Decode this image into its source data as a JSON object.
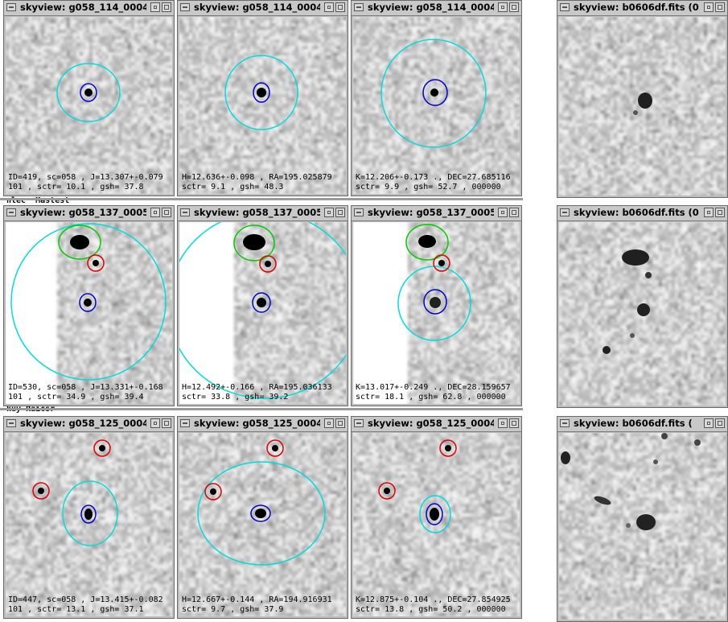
{
  "background_terminal": {
    "line1": "nlec  Mastest",
    "line2": "kuy Raicsr"
  },
  "rows": [
    {
      "panels": [
        {
          "title": "skyview: g058_114_0004",
          "caption_line1": "ID=419, sc=058 , J=13.307+-0.079",
          "caption_line2": "101 , sctr= 10.1 , gsh= 37.8"
        },
        {
          "title": "skyview: g058_114_0004",
          "caption_line1": "H=12.636+-0.098 , RA=195.025879",
          "caption_line2": "sctr= 9.1 , gsh= 48.3"
        },
        {
          "title": "skyview: g058_114_0004",
          "caption_line1": "K=12.206+-0.173 ., DEC=27.685116",
          "caption_line2": "sctr= 9.9 , gsh= 52.7 , 000000"
        }
      ],
      "fits_title": "skyview: b0606df.fits  (0"
    },
    {
      "panels": [
        {
          "title": "skyview: g058_137_0005",
          "caption_line1": "ID=530, sc=058 , J=13.331+-0.168",
          "caption_line2": "101 , sctr= 34.9 , gsh= 39.4"
        },
        {
          "title": "skyview: g058_137_0005",
          "caption_line1": "H=12.492+-0.166 , RA=195.036133",
          "caption_line2": "sctr= 33.8 , gsh= 39.2"
        },
        {
          "title": "skyview: g058_137_0005",
          "caption_line1": "K=13.017+-0.249 ., DEC=28.159657",
          "caption_line2": "sctr= 18.1 , gsh= 62.8 , 000000"
        }
      ],
      "fits_title": "skyview: b0606df.fits  (0"
    },
    {
      "panels": [
        {
          "title": "skyview: g058_125_0004",
          "caption_line1": "ID=447, sc=058 , J=13.415+-0.082",
          "caption_line2": "101 , sctr= 13.1 , gsh= 37.1"
        },
        {
          "title": "skyview: g058_125_0004",
          "caption_line1": "H=12.667+-0.144 , RA=194.916931",
          "caption_line2": "sctr= 9.7 , gsh= 37.9"
        },
        {
          "title": "skyview: g058_125_0004",
          "caption_line1": "K=12.875+-0.104 ., DEC=27.854925",
          "caption_line2": "sctr= 13.8 , gsh= 50.2 , 000000"
        }
      ],
      "fits_title": "skyview: b0606df.fits  ("
    }
  ],
  "colors": {
    "target_marker": "#0000cc",
    "aperture_marker": "#00dddd",
    "neighbor_marker": "#dd0000",
    "companion_marker": "#00cc00",
    "window_frame": "#bdbdbd"
  },
  "icons": {
    "window_menu": "window-menu-icon",
    "minimize": "minimize-icon",
    "maximize": "maximize-icon"
  }
}
